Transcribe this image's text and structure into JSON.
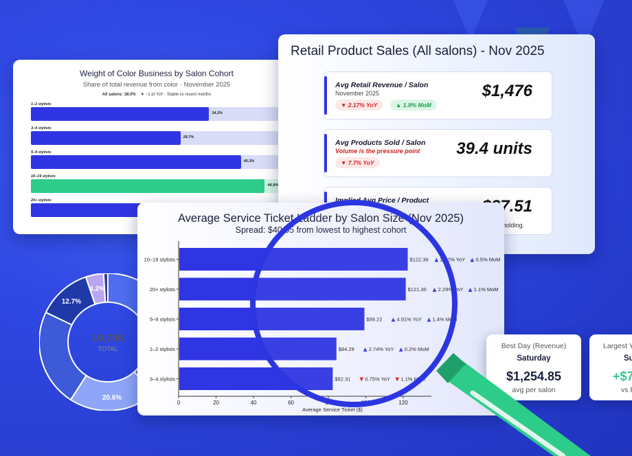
{
  "color_card": {
    "title": "Weight of Color Business by Salon Cohort",
    "subtitle": "Share of total revenue from color · November 2025",
    "all_label": "All salons: 38.0%",
    "all_note": "▼ −1 pt YoY · Stable vs recent months",
    "cohorts": [
      {
        "label": "1–2 stylists",
        "value": "34.2%",
        "pct": 34.2,
        "color": "#3035e3"
      },
      {
        "label": "3–4 stylists",
        "value": "28.7%",
        "pct": 28.7,
        "color": "#3035e3"
      },
      {
        "label": "5–9 stylists",
        "value": "40.3%",
        "pct": 40.3,
        "color": "#3035e3"
      },
      {
        "label": "10–19 stylists",
        "value": "44.9%",
        "pct": 44.9,
        "color": "#2ecc8a"
      },
      {
        "label": "20+ stylists",
        "value": "",
        "pct": 38.0,
        "color": "#3035e3"
      }
    ],
    "scale_max": 48
  },
  "retail_card": {
    "title": "Retail Product Sales (All salons) - Nov 2025",
    "kpis": [
      {
        "title": "Avg Retail Revenue / Salon",
        "sub": "November 2025",
        "sub_red": false,
        "value": "$1,476",
        "pills": [
          {
            "text": "▼ 2.17% YoY",
            "kind": "red"
          },
          {
            "text": "▲ 1.9% MoM",
            "kind": "green"
          }
        ]
      },
      {
        "title": "Avg Products Sold / Salon",
        "sub": "Volume is the pressure point",
        "sub_red": true,
        "value": "39.4 units",
        "pills": [
          {
            "text": "▼ 7.7% YoY",
            "kind": "red"
          }
        ]
      },
      {
        "title": "Implied Avg Price / Product",
        "sub": "",
        "sub_red": false,
        "value": "$37.51",
        "note": "holding.",
        "pills": []
      }
    ]
  },
  "donut": {
    "total_value": "10,785",
    "total_label": "TOTAL",
    "segments": [
      {
        "label": "",
        "pct": 38.5,
        "color": "#4e6df0"
      },
      {
        "label": "20.6%",
        "pct": 20.6,
        "color": "#8fa6f8"
      },
      {
        "label": "",
        "pct": 23.0,
        "color": "#3d5ad8"
      },
      {
        "label": "12.7%",
        "pct": 12.7,
        "color": "#1f3aa8"
      },
      {
        "label": "4.2%",
        "pct": 4.2,
        "color": "#b8a6f2"
      },
      {
        "label": "",
        "pct": 1.0,
        "color": "#3b3d8f"
      }
    ]
  },
  "ticket_card": {
    "title": "Average Service Ticket Ladder by Salon Size (Nov 2025)",
    "subtitle": "Spread: $40.05 from lowest to highest cohort"
  },
  "chart_data": {
    "type": "bar",
    "orientation": "horizontal",
    "title": "Average Service Ticket Ladder by Salon Size (Nov 2025)",
    "subtitle": "Spread: $40.05 from lowest to highest cohort",
    "xlabel": "Average Service Ticket ($)",
    "xlim": [
      0,
      135
    ],
    "xticks": [
      0,
      20,
      40,
      60,
      80,
      100,
      120
    ],
    "categories": [
      "10–19 stylists",
      "20+ stylists",
      "5–9 stylists",
      "1–2 stylists",
      "3–4 stylists"
    ],
    "values": [
      122.36,
      121.3,
      99.22,
      84.29,
      82.31
    ],
    "value_labels": [
      "$122.36",
      "$121.30",
      "$99.22",
      "$84.29",
      "$82.31"
    ],
    "yoy": [
      {
        "text": "2.22% YoY",
        "dir": "up"
      },
      {
        "text": "2.29% YoY",
        "dir": "up"
      },
      {
        "text": "4.91% YoY",
        "dir": "up"
      },
      {
        "text": "2.74% YoY",
        "dir": "up"
      },
      {
        "text": "0.75% YoY",
        "dir": "down"
      }
    ],
    "mom": [
      {
        "text": "0.5% MoM",
        "dir": "up"
      },
      {
        "text": "1.1% MoM",
        "dir": "up"
      },
      {
        "text": "1.4% MoM",
        "dir": "up"
      },
      {
        "text": "0.2% MoM",
        "dir": "up"
      },
      {
        "text": "1.1% MoM",
        "dir": "down"
      }
    ],
    "bar_color": "#3035e3"
  },
  "best_day": {
    "title": "Best Day (Revenue)",
    "day": "Saturday",
    "value": "$1,254.85",
    "note": "avg per salon"
  },
  "largest_card": {
    "title": "Largest Y",
    "day": "Su",
    "value": "+$7",
    "note": "vs Fe"
  }
}
